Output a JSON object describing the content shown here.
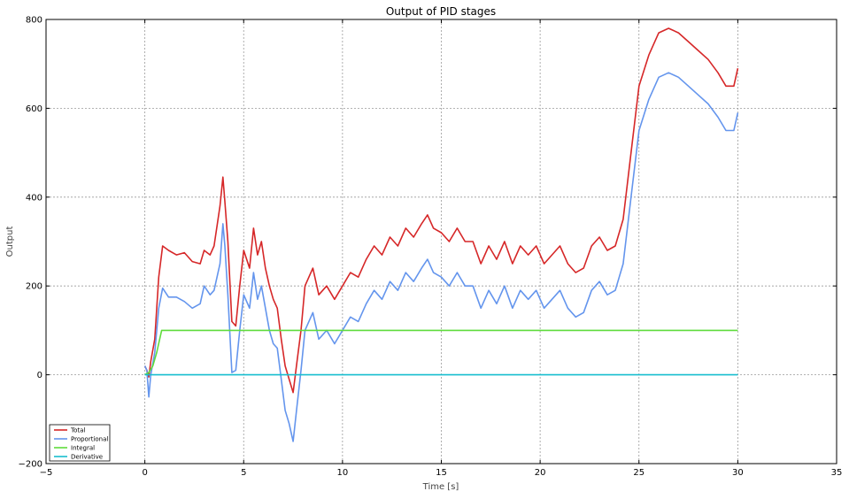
{
  "chart_data": {
    "type": "line",
    "title": "Output of PID stages",
    "xlabel": "Time [s]",
    "ylabel": "Output",
    "xlim": [
      -5,
      35
    ],
    "ylim": [
      -200,
      800
    ],
    "xticks": [
      -5,
      0,
      5,
      10,
      15,
      20,
      25,
      30,
      35
    ],
    "yticks": [
      -200,
      0,
      200,
      400,
      600,
      800
    ],
    "grid": true,
    "legend_position": "bottom-left",
    "series": [
      {
        "name": "Total",
        "color": "#d62728",
        "points": [
          [
            0,
            20
          ],
          [
            0.1,
            10
          ],
          [
            0.2,
            -5
          ],
          [
            0.3,
            30
          ],
          [
            0.5,
            80
          ],
          [
            0.7,
            220
          ],
          [
            0.9,
            290
          ],
          [
            1.2,
            280
          ],
          [
            1.6,
            270
          ],
          [
            2.0,
            275
          ],
          [
            2.4,
            255
          ],
          [
            2.8,
            250
          ],
          [
            3.0,
            280
          ],
          [
            3.3,
            270
          ],
          [
            3.5,
            290
          ],
          [
            3.8,
            380
          ],
          [
            3.95,
            445
          ],
          [
            4.05,
            390
          ],
          [
            4.2,
            300
          ],
          [
            4.4,
            120
          ],
          [
            4.6,
            110
          ],
          [
            4.8,
            200
          ],
          [
            5.0,
            280
          ],
          [
            5.3,
            240
          ],
          [
            5.5,
            330
          ],
          [
            5.7,
            270
          ],
          [
            5.9,
            300
          ],
          [
            6.1,
            240
          ],
          [
            6.3,
            200
          ],
          [
            6.5,
            170
          ],
          [
            6.7,
            150
          ],
          [
            6.9,
            80
          ],
          [
            7.1,
            20
          ],
          [
            7.3,
            -10
          ],
          [
            7.5,
            -40
          ],
          [
            7.7,
            30
          ],
          [
            7.9,
            100
          ],
          [
            8.1,
            200
          ],
          [
            8.3,
            220
          ],
          [
            8.5,
            240
          ],
          [
            8.8,
            180
          ],
          [
            9.2,
            200
          ],
          [
            9.6,
            170
          ],
          [
            10.0,
            200
          ],
          [
            10.4,
            230
          ],
          [
            10.8,
            220
          ],
          [
            11.2,
            260
          ],
          [
            11.6,
            290
          ],
          [
            12.0,
            270
          ],
          [
            12.4,
            310
          ],
          [
            12.8,
            290
          ],
          [
            13.2,
            330
          ],
          [
            13.6,
            310
          ],
          [
            14.0,
            340
          ],
          [
            14.3,
            360
          ],
          [
            14.6,
            330
          ],
          [
            15.0,
            320
          ],
          [
            15.4,
            300
          ],
          [
            15.8,
            330
          ],
          [
            16.2,
            300
          ],
          [
            16.6,
            300
          ],
          [
            17.0,
            250
          ],
          [
            17.4,
            290
          ],
          [
            17.8,
            260
          ],
          [
            18.2,
            300
          ],
          [
            18.6,
            250
          ],
          [
            19.0,
            290
          ],
          [
            19.4,
            270
          ],
          [
            19.8,
            290
          ],
          [
            20.2,
            250
          ],
          [
            20.6,
            270
          ],
          [
            21.0,
            290
          ],
          [
            21.4,
            250
          ],
          [
            21.8,
            230
          ],
          [
            22.2,
            240
          ],
          [
            22.6,
            290
          ],
          [
            23.0,
            310
          ],
          [
            23.4,
            280
          ],
          [
            23.8,
            290
          ],
          [
            24.2,
            350
          ],
          [
            24.6,
            500
          ],
          [
            25.0,
            650
          ],
          [
            25.5,
            720
          ],
          [
            26.0,
            770
          ],
          [
            26.5,
            780
          ],
          [
            27.0,
            770
          ],
          [
            27.5,
            750
          ],
          [
            28.0,
            730
          ],
          [
            28.5,
            710
          ],
          [
            29.0,
            680
          ],
          [
            29.4,
            650
          ],
          [
            29.8,
            650
          ],
          [
            30.0,
            690
          ]
        ]
      },
      {
        "name": "Proportional",
        "color": "#6495ed",
        "points": [
          [
            0,
            20
          ],
          [
            0.1,
            10
          ],
          [
            0.2,
            -50
          ],
          [
            0.3,
            0
          ],
          [
            0.5,
            50
          ],
          [
            0.7,
            150
          ],
          [
            0.9,
            195
          ],
          [
            1.2,
            175
          ],
          [
            1.6,
            175
          ],
          [
            2.0,
            165
          ],
          [
            2.4,
            150
          ],
          [
            2.8,
            160
          ],
          [
            3.0,
            200
          ],
          [
            3.3,
            180
          ],
          [
            3.5,
            190
          ],
          [
            3.8,
            250
          ],
          [
            3.95,
            340
          ],
          [
            4.05,
            290
          ],
          [
            4.2,
            180
          ],
          [
            4.4,
            5
          ],
          [
            4.6,
            10
          ],
          [
            4.8,
            100
          ],
          [
            5.0,
            180
          ],
          [
            5.3,
            150
          ],
          [
            5.5,
            230
          ],
          [
            5.7,
            170
          ],
          [
            5.9,
            200
          ],
          [
            6.1,
            150
          ],
          [
            6.3,
            100
          ],
          [
            6.5,
            70
          ],
          [
            6.7,
            60
          ],
          [
            6.9,
            -10
          ],
          [
            7.1,
            -80
          ],
          [
            7.3,
            -110
          ],
          [
            7.5,
            -150
          ],
          [
            7.7,
            -70
          ],
          [
            7.9,
            10
          ],
          [
            8.1,
            100
          ],
          [
            8.3,
            120
          ],
          [
            8.5,
            140
          ],
          [
            8.8,
            80
          ],
          [
            9.2,
            100
          ],
          [
            9.6,
            70
          ],
          [
            10.0,
            100
          ],
          [
            10.4,
            130
          ],
          [
            10.8,
            120
          ],
          [
            11.2,
            160
          ],
          [
            11.6,
            190
          ],
          [
            12.0,
            170
          ],
          [
            12.4,
            210
          ],
          [
            12.8,
            190
          ],
          [
            13.2,
            230
          ],
          [
            13.6,
            210
          ],
          [
            14.0,
            240
          ],
          [
            14.3,
            260
          ],
          [
            14.6,
            230
          ],
          [
            15.0,
            220
          ],
          [
            15.4,
            200
          ],
          [
            15.8,
            230
          ],
          [
            16.2,
            200
          ],
          [
            16.6,
            200
          ],
          [
            17.0,
            150
          ],
          [
            17.4,
            190
          ],
          [
            17.8,
            160
          ],
          [
            18.2,
            200
          ],
          [
            18.6,
            150
          ],
          [
            19.0,
            190
          ],
          [
            19.4,
            170
          ],
          [
            19.8,
            190
          ],
          [
            20.2,
            150
          ],
          [
            20.6,
            170
          ],
          [
            21.0,
            190
          ],
          [
            21.4,
            150
          ],
          [
            21.8,
            130
          ],
          [
            22.2,
            140
          ],
          [
            22.6,
            190
          ],
          [
            23.0,
            210
          ],
          [
            23.4,
            180
          ],
          [
            23.8,
            190
          ],
          [
            24.2,
            250
          ],
          [
            24.6,
            400
          ],
          [
            25.0,
            550
          ],
          [
            25.5,
            620
          ],
          [
            26.0,
            670
          ],
          [
            26.5,
            680
          ],
          [
            27.0,
            670
          ],
          [
            27.5,
            650
          ],
          [
            28.0,
            630
          ],
          [
            28.5,
            610
          ],
          [
            29.0,
            580
          ],
          [
            29.4,
            550
          ],
          [
            29.8,
            550
          ],
          [
            30.0,
            590
          ]
        ]
      },
      {
        "name": "Integral",
        "color": "#5fdc3c",
        "points": [
          [
            0,
            0
          ],
          [
            0.2,
            5
          ],
          [
            0.4,
            20
          ],
          [
            0.6,
            50
          ],
          [
            0.85,
            100
          ],
          [
            30.0,
            100
          ]
        ]
      },
      {
        "name": "Derivative",
        "color": "#17becf",
        "points": [
          [
            0,
            0
          ],
          [
            30.0,
            0
          ]
        ]
      }
    ]
  }
}
